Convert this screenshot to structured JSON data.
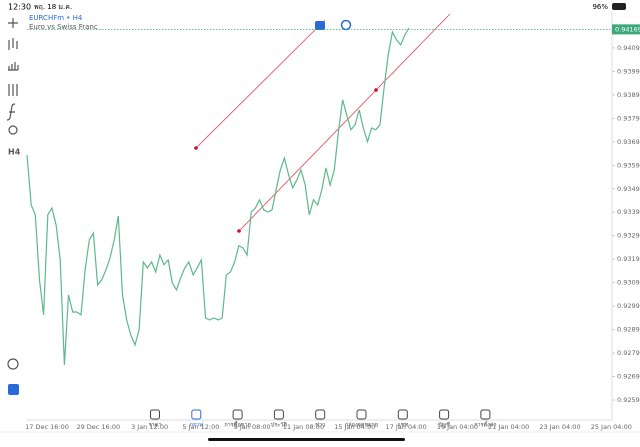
{
  "status_bar": {
    "time": "12:30",
    "date": "พฤ. 18 ม.ค.",
    "battery": "96%"
  },
  "symbol": {
    "name": "EURCHFm • H4",
    "description": "Euro vs Swiss Franc"
  },
  "timeframe": "H4",
  "chart_data": {
    "type": "line",
    "color": "#5bb98c",
    "values": [
      0.93634,
      0.93421,
      0.93379,
      0.93102,
      0.92953,
      0.93379,
      0.93408,
      0.93336,
      0.93187,
      0.9274,
      0.93038,
      0.92965,
      0.92965,
      0.92953,
      0.93144,
      0.93272,
      0.93302,
      0.9308,
      0.93102,
      0.93144,
      0.93195,
      0.93272,
      0.93374,
      0.93038,
      0.92931,
      0.92867,
      0.92825,
      0.92889,
      0.93178,
      0.93153,
      0.93178,
      0.93136,
      0.93208,
      0.93166,
      0.93187,
      0.93089,
      0.93059,
      0.9311,
      0.93153,
      0.93178,
      0.93123,
      0.93153,
      0.93187,
      0.9294,
      0.92931,
      0.9294,
      0.92931,
      0.9294,
      0.93123,
      0.93136,
      0.93178,
      0.93247,
      0.93238,
      0.93208,
      0.93391,
      0.93408,
      0.93443,
      0.934,
      0.93391,
      0.934,
      0.93485,
      0.9357,
      0.93621,
      0.93549,
      0.93494,
      0.93528,
      0.9357,
      0.93506,
      0.93379,
      0.93443,
      0.93421,
      0.93485,
      0.93579,
      0.93506,
      0.9357,
      0.93732,
      0.93869,
      0.93805,
      0.93741,
      0.93762,
      0.93826,
      0.93749,
      0.9369,
      0.93749,
      0.93741,
      0.93762,
      0.9392,
      0.9406,
      0.94158,
      0.94124,
      0.94103,
      0.94145,
      0.94175
    ],
    "current_price": 0.94169,
    "ylim": [
      0.92505,
      0.94243
    ],
    "yticks": [
      {
        "value": 0.9409,
        "label": "0.94090"
      },
      {
        "value": 0.9399,
        "label": "0.93990"
      },
      {
        "value": 0.9389,
        "label": "0.93890"
      },
      {
        "value": 0.9379,
        "label": "0.93790"
      },
      {
        "value": 0.9369,
        "label": "0.93690"
      },
      {
        "value": 0.9359,
        "label": "0.93590"
      },
      {
        "value": 0.9349,
        "label": "0.93490"
      },
      {
        "value": 0.9339,
        "label": "0.93390"
      },
      {
        "value": 0.9329,
        "label": "0.93290"
      },
      {
        "value": 0.9319,
        "label": "0.93190"
      },
      {
        "value": 0.9309,
        "label": "0.93090"
      },
      {
        "value": 0.9299,
        "label": "0.92990"
      },
      {
        "value": 0.9289,
        "label": "0.92890"
      },
      {
        "value": 0.9279,
        "label": "0.92790"
      },
      {
        "value": 0.9269,
        "label": "0.92690"
      },
      {
        "value": 0.9259,
        "label": "0.92590"
      }
    ],
    "xlabels": [
      "17 Dec 16:00",
      "29 Dec 16:00",
      "3 Jan 12:00",
      "5 Jan 12:00",
      "9 Jan 08:00",
      "11 Jan 08:00",
      "15 Jan 04:00",
      "17 Jan 04:00",
      "19 Jan 04:00",
      "21 Jan 04:00",
      "23 Jan 04:00",
      "25 Jan 04:00"
    ]
  },
  "tabs": [
    "ราคา",
    "กราฟ",
    "การซื้อขาย",
    "ประวัติ",
    "ข่าว",
    "กล่องจดหมาย",
    "แชท",
    "บัญชี",
    "การตั้งค่า"
  ]
}
